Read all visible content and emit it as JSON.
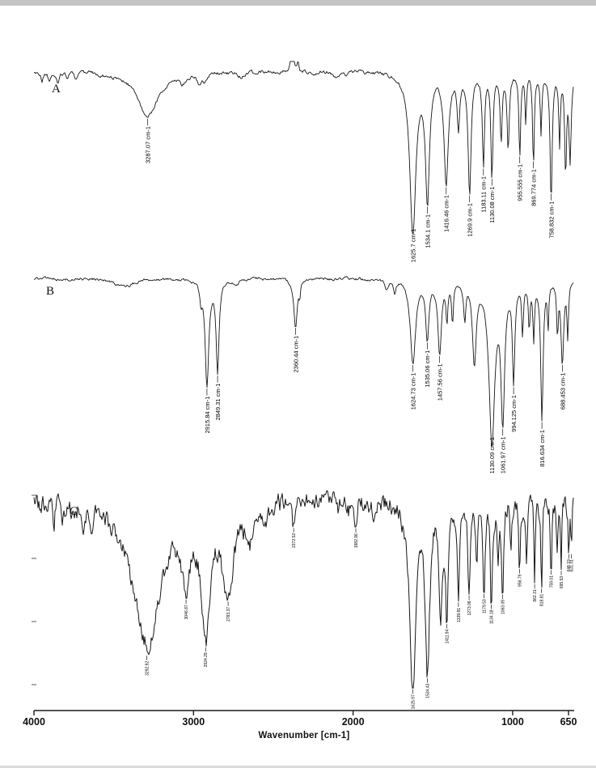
{
  "page": {
    "background": "#ffffff",
    "trace_color": "#161616",
    "axis_color": "#1c1c1c"
  },
  "chart_data": {
    "type": "line",
    "title": "",
    "xlabel": "Wavenumber [cm-1]",
    "ylabel": "",
    "x_min": 4000,
    "x_max": 650,
    "x_axis_reversed": true,
    "grid": false,
    "x_ticks": [
      {
        "value": 4000,
        "label": "4000"
      },
      {
        "value": 3000,
        "label": "3000"
      },
      {
        "value": 2000,
        "label": "2000"
      },
      {
        "value": 1000,
        "label": "1000"
      },
      {
        "value": 650,
        "label": "650"
      }
    ],
    "panels": [
      {
        "label": "A",
        "baseline": 0.06,
        "noise": 0.012,
        "annotated_peaks": [
          {
            "wavenumber": 3287.07,
            "label": "3287.07 cm-1"
          },
          {
            "wavenumber": 1625.7,
            "label": "1625.7 cm-1"
          },
          {
            "wavenumber": 1534.1,
            "label": "1534.1 cm-1"
          },
          {
            "wavenumber": 1416.46,
            "label": "1416.46 cm-1"
          },
          {
            "wavenumber": 1269.9,
            "label": "1269.9 cm-1"
          },
          {
            "wavenumber": 1183.11,
            "label": "1183.11 cm-1"
          },
          {
            "wavenumber": 1130.08,
            "label": "1130.08 cm-1"
          },
          {
            "wavenumber": 955.555,
            "label": "955.555 cm-1"
          },
          {
            "wavenumber": 869.774,
            "label": "869.774 cm-1"
          },
          {
            "wavenumber": 758.832,
            "label": "758.832 cm-1"
          }
        ],
        "synthesis_peaks": [
          [
            3950,
            0.05,
            15
          ],
          [
            3905,
            0.04,
            18
          ],
          [
            3850,
            0.06,
            25
          ],
          [
            3790,
            0.04,
            20
          ],
          [
            3740,
            0.03,
            18
          ],
          [
            3287.07,
            0.25,
            160
          ],
          [
            3070,
            0.05,
            40
          ],
          [
            2962,
            0.06,
            30
          ],
          [
            2930,
            0.05,
            26
          ],
          [
            2700,
            0.02,
            40
          ],
          [
            2380,
            -0.25,
            16
          ],
          [
            2345,
            -0.06,
            10
          ],
          [
            2110,
            0.03,
            30
          ],
          [
            2050,
            0.02,
            25
          ],
          [
            1625.7,
            0.9,
            46
          ],
          [
            1534.1,
            0.7,
            30
          ],
          [
            1416.46,
            0.62,
            32
          ],
          [
            1340,
            0.3,
            18
          ],
          [
            1269.9,
            0.68,
            22
          ],
          [
            1183.11,
            0.5,
            16
          ],
          [
            1130.08,
            0.58,
            16
          ],
          [
            1072,
            0.38,
            16
          ],
          [
            1028,
            0.42,
            16
          ],
          [
            955.555,
            0.48,
            13
          ],
          [
            918,
            0.28,
            11
          ],
          [
            869.774,
            0.52,
            13
          ],
          [
            822,
            0.33,
            11
          ],
          [
            758.832,
            0.72,
            16
          ],
          [
            706,
            0.4,
            12
          ],
          [
            668,
            0.55,
            14
          ],
          [
            640,
            0.5,
            16
          ]
        ]
      },
      {
        "label": "B",
        "baseline": 0.04,
        "noise": 0.009,
        "annotated_peaks": [
          {
            "wavenumber": 2915.84,
            "label": "2915.84 cm-1"
          },
          {
            "wavenumber": 2849.31,
            "label": "2849.31 cm-1"
          },
          {
            "wavenumber": 2360.44,
            "label": "2360.44 cm-1"
          },
          {
            "wavenumber": 1624.73,
            "label": "1624.73 cm-1"
          },
          {
            "wavenumber": 1535.06,
            "label": "1535.06 cm-1"
          },
          {
            "wavenumber": 1457.56,
            "label": "1457.56 cm-1"
          },
          {
            "wavenumber": 1130.09,
            "label": "1130.09 cm-1"
          },
          {
            "wavenumber": 1061.97,
            "label": "1061.97 cm-1"
          },
          {
            "wavenumber": 994.125,
            "label": "994.125 cm-1"
          },
          {
            "wavenumber": 816.634,
            "label": "816.634 cm-1"
          },
          {
            "wavenumber": 688.453,
            "label": "688.453 cm-1"
          }
        ],
        "synthesis_peaks": [
          [
            3430,
            0.04,
            150
          ],
          [
            2953,
            0.1,
            18
          ],
          [
            2915.84,
            0.58,
            28
          ],
          [
            2849.31,
            0.5,
            22
          ],
          [
            2730,
            0.03,
            30
          ],
          [
            2360.44,
            0.26,
            26
          ],
          [
            2335,
            0.08,
            10
          ],
          [
            1790,
            0.05,
            25
          ],
          [
            1740,
            0.07,
            18
          ],
          [
            1624.73,
            0.46,
            40
          ],
          [
            1535.06,
            0.32,
            24
          ],
          [
            1457.56,
            0.4,
            26
          ],
          [
            1412,
            0.2,
            14
          ],
          [
            1377,
            0.22,
            13
          ],
          [
            1300,
            0.2,
            16
          ],
          [
            1240,
            0.45,
            28
          ],
          [
            1130.09,
            0.88,
            44
          ],
          [
            1061.97,
            0.72,
            28
          ],
          [
            994.125,
            0.52,
            18
          ],
          [
            938,
            0.28,
            13
          ],
          [
            896,
            0.25,
            12
          ],
          [
            868,
            0.3,
            12
          ],
          [
            816.634,
            0.75,
            18
          ],
          [
            778,
            0.25,
            10
          ],
          [
            719,
            0.28,
            12
          ],
          [
            688.453,
            0.46,
            20
          ],
          [
            655,
            0.3,
            12
          ]
        ]
      },
      {
        "label": "C",
        "baseline": 0.055,
        "noise": 0.03,
        "annotated_peaks": [
          {
            "wavenumber": 3292.92,
            "label": "3292.92"
          },
          {
            "wavenumber": 3046.87,
            "label": "3046.87"
          },
          {
            "wavenumber": 2924.29,
            "label": "2924.29"
          },
          {
            "wavenumber": 2783.37,
            "label": "2783.37"
          },
          {
            "wavenumber": 2372.52,
            "label": "2372.52"
          },
          {
            "wavenumber": 1982.96,
            "label": "1982.96"
          },
          {
            "wavenumber": 1625.97,
            "label": "1625.97"
          },
          {
            "wavenumber": 1534.43,
            "label": "1534.43"
          },
          {
            "wavenumber": 1411.94,
            "label": "1411.94"
          },
          {
            "wavenumber": 1339.81,
            "label": "1339.81"
          },
          {
            "wavenumber": 1273.06,
            "label": "1273.06"
          },
          {
            "wavenumber": 1179.53,
            "label": "1179.53"
          },
          {
            "wavenumber": 1134.18,
            "label": "1134.18"
          },
          {
            "wavenumber": 1063.09,
            "label": "1063.09"
          },
          {
            "wavenumber": 956.79,
            "label": "956.79"
          },
          {
            "wavenumber": 862.31,
            "label": "862.31"
          },
          {
            "wavenumber": 818.81,
            "label": "818.81"
          },
          {
            "wavenumber": 759.01,
            "label": "759.01"
          },
          {
            "wavenumber": 695.53,
            "label": "695.53"
          },
          {
            "wavenumber": 648.19,
            "label": "648.19"
          },
          {
            "wavenumber": 631.41,
            "label": "631.41"
          }
        ],
        "synthesis_peaks": [
          [
            3955,
            0.07,
            12
          ],
          [
            3920,
            0.05,
            14
          ],
          [
            3875,
            0.08,
            18
          ],
          [
            3820,
            0.06,
            16
          ],
          [
            3750,
            0.07,
            22
          ],
          [
            3690,
            0.09,
            24
          ],
          [
            3640,
            0.1,
            22
          ],
          [
            3292.92,
            0.7,
            210
          ],
          [
            3046.87,
            0.32,
            60
          ],
          [
            2924.29,
            0.6,
            64
          ],
          [
            2783.37,
            0.42,
            85
          ],
          [
            2650,
            0.18,
            50
          ],
          [
            2550,
            0.1,
            40
          ],
          [
            2372.52,
            0.13,
            18
          ],
          [
            2330,
            0.06,
            12
          ],
          [
            2100,
            0.05,
            25
          ],
          [
            2030,
            0.04,
            20
          ],
          [
            1982.96,
            0.11,
            20
          ],
          [
            1870,
            0.05,
            25
          ],
          [
            1625.97,
            0.9,
            48
          ],
          [
            1534.43,
            0.8,
            34
          ],
          [
            1452,
            0.48,
            24
          ],
          [
            1411.94,
            0.55,
            20
          ],
          [
            1339.81,
            0.5,
            18
          ],
          [
            1273.06,
            0.46,
            18
          ],
          [
            1225,
            0.32,
            13
          ],
          [
            1179.53,
            0.48,
            15
          ],
          [
            1134.18,
            0.52,
            15
          ],
          [
            1092,
            0.3,
            12
          ],
          [
            1063.09,
            0.46,
            14
          ],
          [
            1012,
            0.3,
            11
          ],
          [
            956.79,
            0.4,
            12
          ],
          [
            912,
            0.28,
            10
          ],
          [
            862.31,
            0.36,
            11
          ],
          [
            818.81,
            0.4,
            11
          ],
          [
            759.01,
            0.36,
            11
          ],
          [
            721,
            0.26,
            9
          ],
          [
            695.53,
            0.31,
            9
          ],
          [
            648.19,
            0.28,
            9
          ],
          [
            631.41,
            0.22,
            8
          ]
        ]
      }
    ]
  }
}
